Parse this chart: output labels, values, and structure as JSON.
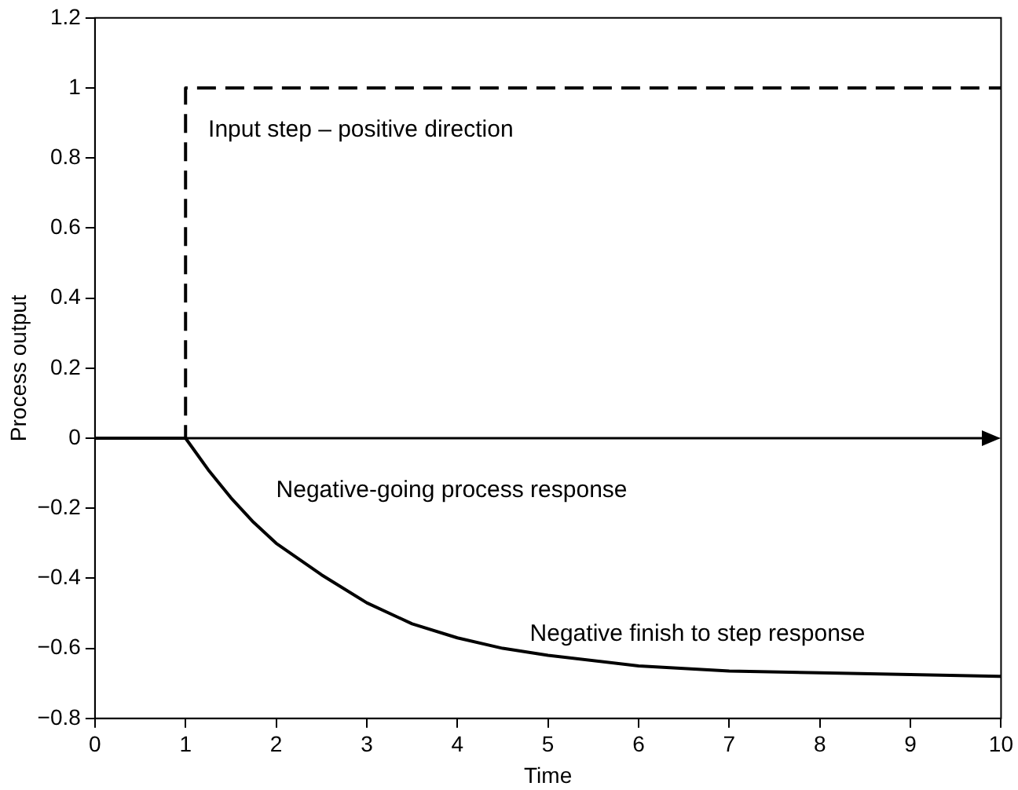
{
  "chart_data": {
    "type": "line",
    "xlabel": "Time",
    "ylabel": "Process output",
    "xlim": [
      0,
      10
    ],
    "xticks": [
      0,
      1,
      2,
      3,
      4,
      5,
      6,
      7,
      8,
      9,
      10
    ],
    "ylim": [
      -0.8,
      1.2
    ],
    "yticks": [
      -0.8,
      -0.6,
      -0.4,
      -0.2,
      0,
      0.2,
      0.4,
      0.6,
      0.8,
      1,
      1.2
    ],
    "grid": false,
    "legend": false,
    "marker": "none",
    "series": [
      {
        "color": "#000000",
        "line_style": "dashed",
        "x": [
          0,
          1,
          1,
          10
        ],
        "values": [
          0,
          0,
          1,
          1
        ]
      },
      {
        "color": "#000000",
        "line_style": "solid",
        "x": [
          0,
          1,
          1.25,
          1.5,
          1.75,
          2,
          2.5,
          3,
          3.5,
          4,
          4.5,
          5,
          6,
          7,
          8,
          9,
          10
        ],
        "values": [
          0,
          0,
          -0.09,
          -0.17,
          -0.24,
          -0.3,
          -0.39,
          -0.47,
          -0.53,
          -0.57,
          -0.6,
          -0.62,
          -0.65,
          -0.665,
          -0.67,
          -0.675,
          -0.68
        ]
      }
    ],
    "ref_lines": [
      {
        "axis": "y",
        "value": 0,
        "color": "#000000"
      }
    ],
    "annotations": [
      "Input step – positive direction",
      "Negative-going process response",
      "Negative finish to step response"
    ]
  }
}
